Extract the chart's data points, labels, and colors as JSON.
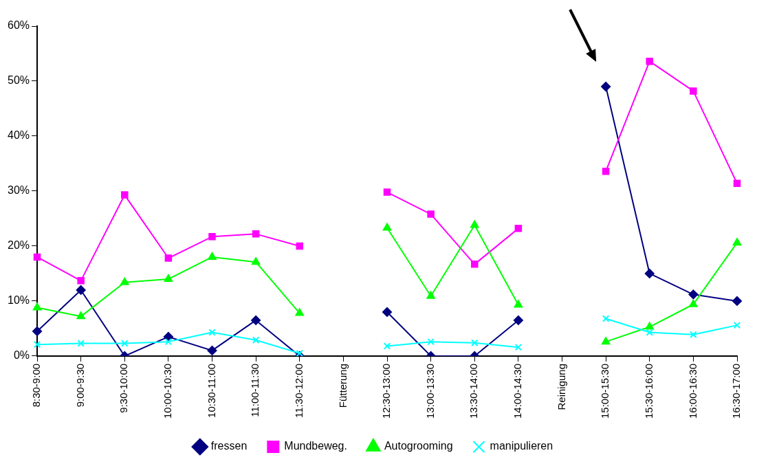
{
  "chart_data": {
    "type": "line",
    "categories": [
      "8:30-9:00",
      "9:00-9:30",
      "9:30-10:00",
      "10:00-10:30",
      "10:30-11:00",
      "11:00-11:30",
      "11:30-12:00",
      "Fütterung",
      "12:30-13:00",
      "13:00-13:30",
      "13:30-14:00",
      "14:00-14:30",
      "Reinigung",
      "15:00-15:30",
      "15:30-16:00",
      "16:00-16:30",
      "16:30-17:00"
    ],
    "series": [
      {
        "name": "fressen",
        "color": "#000080",
        "marker": "diamond",
        "values": [
          4.5,
          12,
          0,
          3.5,
          1,
          6.5,
          0,
          null,
          8,
          0,
          0,
          6.5,
          null,
          49,
          15,
          11.2,
          10
        ]
      },
      {
        "name": "Mundbeweg.",
        "color": "#ff00ff",
        "marker": "square",
        "values": [
          18,
          13.7,
          29.3,
          17.8,
          21.7,
          22.2,
          20,
          null,
          29.8,
          25.8,
          16.7,
          23.2,
          null,
          33.6,
          53.6,
          48.2,
          31.4
        ]
      },
      {
        "name": "Autogrooming",
        "color": "#00ff00",
        "marker": "triangle",
        "values": [
          8.8,
          7.2,
          13.4,
          14,
          18,
          17.1,
          7.8,
          null,
          23.3,
          10.9,
          23.8,
          9.3,
          null,
          2.6,
          5.3,
          9.4,
          20.6
        ]
      },
      {
        "name": "manipulieren",
        "color": "#00ffff",
        "marker": "cross",
        "values": [
          2.1,
          2.3,
          2.3,
          2.6,
          4.3,
          2.9,
          0.5,
          null,
          1.8,
          2.6,
          2.4,
          1.6,
          null,
          6.8,
          4.3,
          3.9,
          5.6
        ]
      }
    ],
    "ylim": [
      0,
      60
    ],
    "yticks": [
      {
        "value": 0,
        "label": "0%"
      },
      {
        "value": 10,
        "label": "10%"
      },
      {
        "value": 20,
        "label": "20%"
      },
      {
        "value": 30,
        "label": "30%"
      },
      {
        "value": 40,
        "label": "40%"
      },
      {
        "value": 50,
        "label": "50%"
      },
      {
        "value": 60,
        "label": "60%"
      }
    ],
    "grid": false,
    "legend": "bottom",
    "line_style": "solid"
  }
}
